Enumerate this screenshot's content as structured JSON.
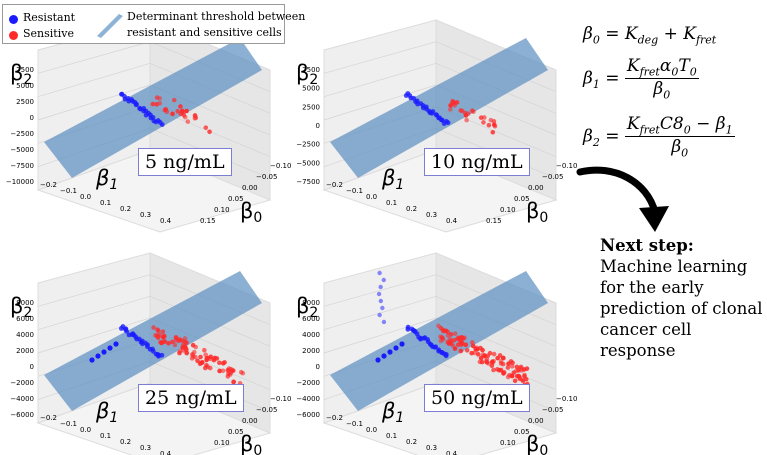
{
  "legend": {
    "resistant": "Resistant",
    "sensitive": "Sensitive",
    "threshold_line1": "Determinant threshold between",
    "threshold_line2": "resistant and sensitive cells",
    "colors": {
      "resistant": "#1a1aff",
      "sensitive": "#ff2a2a",
      "plane": "#5b8fc0"
    }
  },
  "equations": {
    "b0_lhs": "β",
    "b0_rhs": "= K",
    "b0_deg": "deg",
    "b0_plus": " + K",
    "b0_fret": "fret",
    "b1_lhs": "β",
    "b1_num": "K",
    "b1_num_sub": "fret",
    "b1_num_rest": "α",
    "b1_num_rest2": "T",
    "b1_den": "β",
    "b2_lhs": "β",
    "b2_num": "K",
    "b2_num_sub": "fret",
    "b2_num_rest": "C8",
    "b2_num_rest2": " − β",
    "b2_den": "β"
  },
  "next_step": {
    "heading": "Next step:",
    "text": "Machine learning for the early prediction of clonal cancer cell response"
  },
  "chart_data": [
    {
      "type": "scatter",
      "title": "5 ng/mL",
      "axis_labels": {
        "x": "β0",
        "y": "β1",
        "z": "β2"
      },
      "z_ticks": [
        "7500",
        "5000",
        "2500",
        "0",
        "−2500",
        "−5000",
        "−7500",
        "−10000"
      ],
      "y_ticks": [
        "−0.2",
        "−0.1",
        "0.0",
        "0.1",
        "0.2",
        "0.3",
        "0.4"
      ],
      "x_ticks": [
        "−0.10",
        "−0.05",
        "0.00",
        "0.05",
        "0.10",
        "0.15"
      ],
      "series": [
        {
          "name": "Resistant",
          "cluster": "tight"
        },
        {
          "name": "Sensitive",
          "cluster": "spread"
        }
      ]
    },
    {
      "type": "scatter",
      "title": "10 ng/mL",
      "axis_labels": {
        "x": "β0",
        "y": "β1",
        "z": "β2"
      },
      "z_ticks": [
        "7500",
        "5000",
        "2500",
        "0",
        "−2500",
        "−5000",
        "−7500"
      ],
      "y_ticks": [
        "−0.2",
        "−0.1",
        "0.0",
        "0.1",
        "0.2",
        "0.3",
        "0.4"
      ],
      "x_ticks": [
        "−0.10",
        "−0.05",
        "0.00",
        "0.05",
        "0.10",
        "0.15"
      ],
      "series": [
        {
          "name": "Resistant",
          "cluster": "tight"
        },
        {
          "name": "Sensitive",
          "cluster": "spread"
        }
      ]
    },
    {
      "type": "scatter",
      "title": "25 ng/mL",
      "axis_labels": {
        "x": "β0",
        "y": "β1",
        "z": "β2"
      },
      "z_ticks": [
        "8000",
        "6000",
        "4000",
        "2000",
        "0",
        "−2000",
        "−4000",
        "−6000"
      ],
      "y_ticks": [
        "−0.2",
        "−0.1",
        "0.0",
        "0.1",
        "0.2",
        "0.3",
        "0.4"
      ],
      "x_ticks": [
        "−0.10",
        "−0.05",
        "0.00",
        "0.05",
        "0.10"
      ],
      "series": [
        {
          "name": "Resistant",
          "cluster": "tight"
        },
        {
          "name": "Sensitive",
          "cluster": "dense"
        }
      ]
    },
    {
      "type": "scatter",
      "title": "50 ng/mL",
      "axis_labels": {
        "x": "β0",
        "y": "β1",
        "z": "β2"
      },
      "z_ticks": [
        "8000",
        "6000",
        "4000",
        "2000",
        "0",
        "−2000",
        "−4000",
        "−6000"
      ],
      "y_ticks": [
        "−0.2",
        "−0.1",
        "0.0",
        "0.1",
        "0.2",
        "0.3",
        "0.4"
      ],
      "x_ticks": [
        "−0.10",
        "−0.05",
        "0.00",
        "0.05",
        "0.10"
      ],
      "series": [
        {
          "name": "Resistant",
          "cluster": "tight"
        },
        {
          "name": "Sensitive",
          "cluster": "dense"
        }
      ]
    }
  ]
}
